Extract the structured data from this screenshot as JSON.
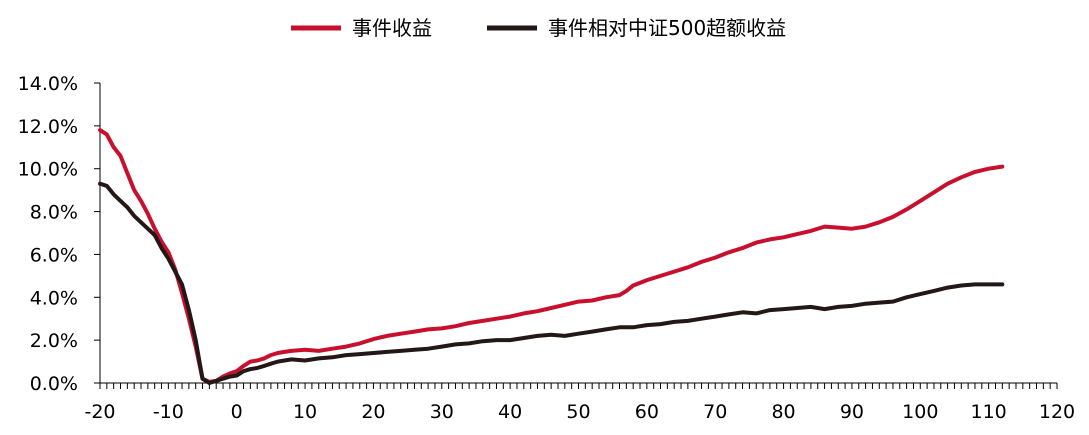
{
  "chart_data": {
    "type": "line",
    "title": "",
    "xlabel": "",
    "ylabel": "",
    "legend_position": "top-center",
    "grid": false,
    "xlim": [
      -20,
      120
    ],
    "ylim": [
      0,
      14
    ],
    "x_ticks": [
      -20,
      -10,
      0,
      10,
      20,
      30,
      40,
      50,
      60,
      70,
      80,
      90,
      100,
      110,
      120
    ],
    "y_ticks": [
      0,
      2,
      4,
      6,
      8,
      10,
      12,
      14
    ],
    "y_tick_labels": [
      "0.0%",
      "2.0%",
      "4.0%",
      "6.0%",
      "8.0%",
      "10.0%",
      "12.0%",
      "14.0%"
    ],
    "series": [
      {
        "name": "事件收益",
        "color": "#c8102e",
        "points": [
          [
            -20,
            11.8
          ],
          [
            -19,
            11.6
          ],
          [
            -18,
            11.0
          ],
          [
            -17,
            10.6
          ],
          [
            -16,
            9.8
          ],
          [
            -15,
            9.0
          ],
          [
            -14,
            8.5
          ],
          [
            -13,
            7.9
          ],
          [
            -12,
            7.2
          ],
          [
            -11,
            6.6
          ],
          [
            -10,
            6.1
          ],
          [
            -9,
            5.3
          ],
          [
            -8,
            4.2
          ],
          [
            -7,
            3.0
          ],
          [
            -6,
            1.7
          ],
          [
            -5,
            0.2
          ],
          [
            -4,
            0.05
          ],
          [
            -3,
            0.1
          ],
          [
            -2,
            0.3
          ],
          [
            -1,
            0.45
          ],
          [
            0,
            0.55
          ],
          [
            1,
            0.8
          ],
          [
            2,
            1.0
          ],
          [
            3,
            1.05
          ],
          [
            4,
            1.15
          ],
          [
            5,
            1.3
          ],
          [
            6,
            1.4
          ],
          [
            7,
            1.45
          ],
          [
            8,
            1.5
          ],
          [
            10,
            1.55
          ],
          [
            12,
            1.5
          ],
          [
            14,
            1.6
          ],
          [
            16,
            1.7
          ],
          [
            18,
            1.85
          ],
          [
            20,
            2.05
          ],
          [
            22,
            2.2
          ],
          [
            24,
            2.3
          ],
          [
            26,
            2.4
          ],
          [
            28,
            2.5
          ],
          [
            30,
            2.55
          ],
          [
            32,
            2.65
          ],
          [
            34,
            2.8
          ],
          [
            36,
            2.9
          ],
          [
            38,
            3.0
          ],
          [
            40,
            3.1
          ],
          [
            42,
            3.25
          ],
          [
            44,
            3.35
          ],
          [
            46,
            3.5
          ],
          [
            48,
            3.65
          ],
          [
            50,
            3.8
          ],
          [
            52,
            3.85
          ],
          [
            54,
            4.0
          ],
          [
            56,
            4.1
          ],
          [
            57,
            4.3
          ],
          [
            58,
            4.55
          ],
          [
            60,
            4.8
          ],
          [
            62,
            5.0
          ],
          [
            64,
            5.2
          ],
          [
            66,
            5.4
          ],
          [
            68,
            5.65
          ],
          [
            70,
            5.85
          ],
          [
            72,
            6.1
          ],
          [
            74,
            6.3
          ],
          [
            76,
            6.55
          ],
          [
            78,
            6.7
          ],
          [
            80,
            6.8
          ],
          [
            82,
            6.95
          ],
          [
            84,
            7.1
          ],
          [
            86,
            7.3
          ],
          [
            88,
            7.25
          ],
          [
            90,
            7.2
          ],
          [
            92,
            7.3
          ],
          [
            94,
            7.5
          ],
          [
            96,
            7.75
          ],
          [
            98,
            8.1
          ],
          [
            100,
            8.5
          ],
          [
            102,
            8.9
          ],
          [
            104,
            9.3
          ],
          [
            106,
            9.6
          ],
          [
            108,
            9.85
          ],
          [
            110,
            10.0
          ],
          [
            112,
            10.1
          ]
        ]
      },
      {
        "name": "事件相对中证500超额收益",
        "color": "#231815",
        "points": [
          [
            -20,
            9.3
          ],
          [
            -19,
            9.2
          ],
          [
            -18,
            8.8
          ],
          [
            -17,
            8.5
          ],
          [
            -16,
            8.2
          ],
          [
            -15,
            7.8
          ],
          [
            -14,
            7.5
          ],
          [
            -13,
            7.2
          ],
          [
            -12,
            6.9
          ],
          [
            -11,
            6.3
          ],
          [
            -10,
            5.8
          ],
          [
            -9,
            5.2
          ],
          [
            -8,
            4.6
          ],
          [
            -7,
            3.4
          ],
          [
            -6,
            2.0
          ],
          [
            -5,
            0.2
          ],
          [
            -4,
            0.0
          ],
          [
            -3,
            0.1
          ],
          [
            -2,
            0.2
          ],
          [
            -1,
            0.3
          ],
          [
            0,
            0.35
          ],
          [
            1,
            0.55
          ],
          [
            2,
            0.65
          ],
          [
            3,
            0.7
          ],
          [
            4,
            0.8
          ],
          [
            5,
            0.9
          ],
          [
            6,
            1.0
          ],
          [
            7,
            1.05
          ],
          [
            8,
            1.1
          ],
          [
            10,
            1.05
          ],
          [
            12,
            1.15
          ],
          [
            14,
            1.2
          ],
          [
            16,
            1.3
          ],
          [
            18,
            1.35
          ],
          [
            20,
            1.4
          ],
          [
            22,
            1.45
          ],
          [
            24,
            1.5
          ],
          [
            26,
            1.55
          ],
          [
            28,
            1.6
          ],
          [
            30,
            1.7
          ],
          [
            32,
            1.8
          ],
          [
            34,
            1.85
          ],
          [
            36,
            1.95
          ],
          [
            38,
            2.0
          ],
          [
            40,
            2.0
          ],
          [
            42,
            2.1
          ],
          [
            44,
            2.2
          ],
          [
            46,
            2.25
          ],
          [
            48,
            2.2
          ],
          [
            50,
            2.3
          ],
          [
            52,
            2.4
          ],
          [
            54,
            2.5
          ],
          [
            56,
            2.6
          ],
          [
            58,
            2.6
          ],
          [
            60,
            2.7
          ],
          [
            62,
            2.75
          ],
          [
            64,
            2.85
          ],
          [
            66,
            2.9
          ],
          [
            68,
            3.0
          ],
          [
            70,
            3.1
          ],
          [
            72,
            3.2
          ],
          [
            74,
            3.3
          ],
          [
            76,
            3.25
          ],
          [
            78,
            3.4
          ],
          [
            80,
            3.45
          ],
          [
            82,
            3.5
          ],
          [
            84,
            3.55
          ],
          [
            86,
            3.45
          ],
          [
            88,
            3.55
          ],
          [
            90,
            3.6
          ],
          [
            92,
            3.7
          ],
          [
            94,
            3.75
          ],
          [
            96,
            3.8
          ],
          [
            98,
            4.0
          ],
          [
            100,
            4.15
          ],
          [
            102,
            4.3
          ],
          [
            104,
            4.45
          ],
          [
            106,
            4.55
          ],
          [
            108,
            4.6
          ],
          [
            110,
            4.6
          ],
          [
            112,
            4.6
          ]
        ]
      }
    ]
  }
}
